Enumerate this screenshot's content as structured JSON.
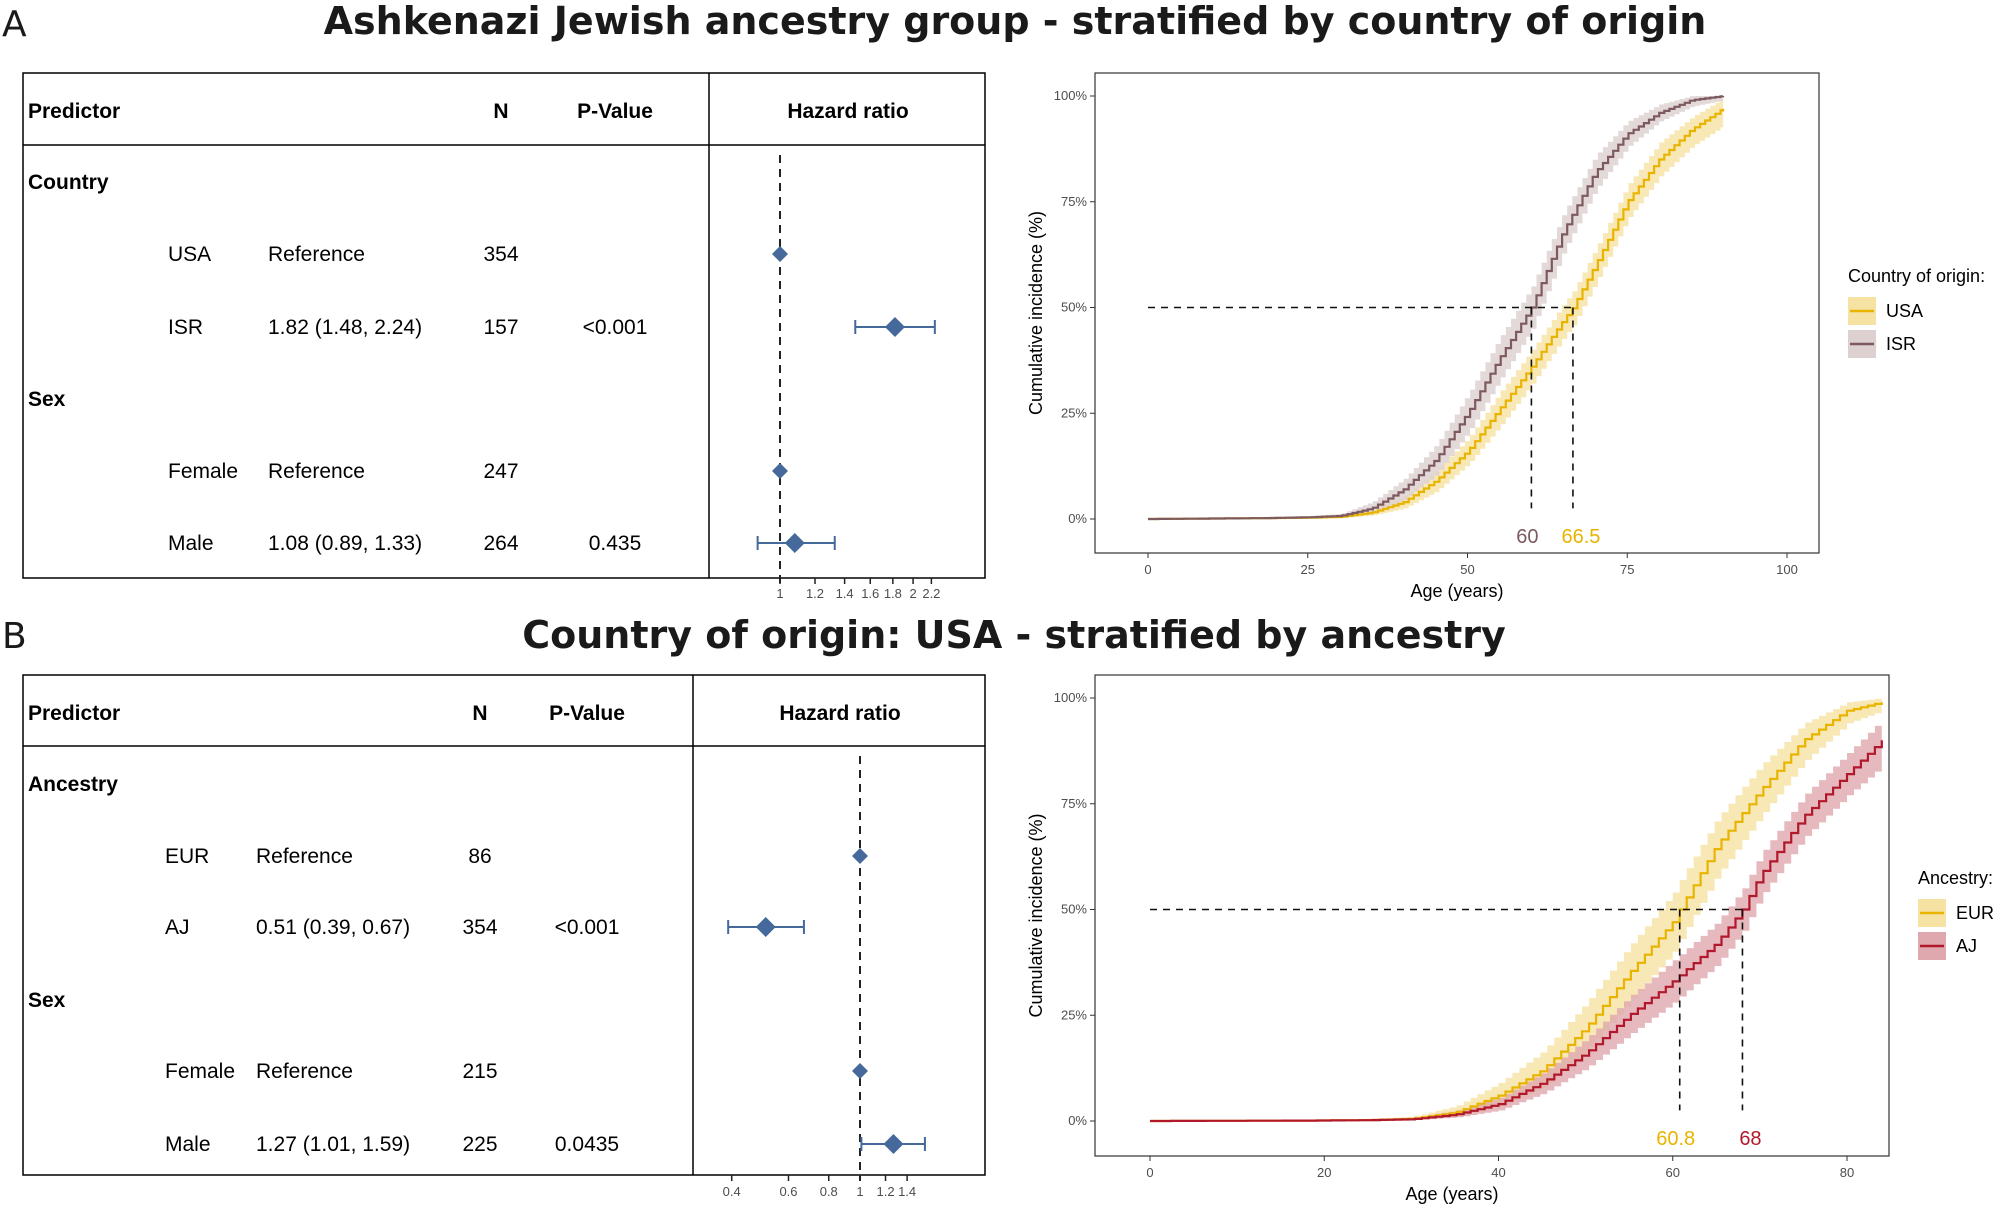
{
  "chart_data": [
    {
      "panel_label": "A",
      "title": "Ashkenazi Jewish ancestry group - stratified by country of  origin",
      "forest": {
        "type": "table",
        "headers": {
          "predictor": "Predictor",
          "n": "N",
          "p": "P-Value",
          "hr": "Hazard ratio"
        },
        "rows": [
          {
            "group": "Country"
          },
          {
            "label": "USA",
            "estimate": "Reference",
            "n": "354",
            "p": "",
            "hr": 1
          },
          {
            "label": "ISR",
            "estimate": "1.82 (1.48, 2.24)",
            "n": "157",
            "p": "<0.001",
            "hr": 1.82,
            "lo": 1.48,
            "hi": 2.24
          },
          {
            "group": "Sex"
          },
          {
            "label": "Female",
            "estimate": "Reference",
            "n": "247",
            "p": "",
            "hr": 1
          },
          {
            "label": "Male",
            "estimate": "1.08 (0.89, 1.33)",
            "n": "264",
            "p": "0.435",
            "hr": 1.08,
            "lo": 0.89,
            "hi": 1.33
          }
        ],
        "x_scale": "log",
        "x_ticks": [
          "1",
          "1.2",
          "1.4",
          "1.6",
          "1.8",
          "2",
          "2.2"
        ],
        "reference_line": 1,
        "marker_color": "#44699A"
      },
      "km": {
        "type": "line",
        "xlabel": "Age (years)",
        "ylabel": "Cumulative incidence (%)",
        "x_ticks": [
          "0",
          "25",
          "50",
          "75",
          "100"
        ],
        "y_ticks": [
          "0%",
          "25%",
          "50%",
          "75%",
          "100%"
        ],
        "xlim": [
          -4,
          104
        ],
        "ylim": [
          -5,
          105
        ],
        "grid": false,
        "legend_title": "Country of origin:",
        "legend_position": "right",
        "series": [
          {
            "name": "USA",
            "color": "#E8B400",
            "band_color": "#F6E2A2",
            "x": [
              0,
              18,
              25,
              30,
              35,
              40,
              45,
              50,
              55,
              60,
              65,
              66.5,
              70,
              75,
              80,
              85,
              90
            ],
            "y": [
              0,
              0.2,
              0.3,
              0.5,
              1.5,
              4,
              9,
              16,
              26,
              36,
              47,
              50,
              60,
              75,
              85,
              92,
              97
            ],
            "lower": [
              0,
              0,
              0,
              0.2,
              0.8,
              2.5,
              6.5,
              13,
              22,
              32,
              43,
              46,
              56,
              71,
              81,
              88,
              93
            ],
            "upper": [
              0,
              0.4,
              0.6,
              1,
              2.4,
              5.5,
              11.5,
              19,
              30,
              40,
              51,
              54,
              64,
              79,
              89,
              95,
              99.5
            ]
          },
          {
            "name": "ISR",
            "color": "#7D5A5F",
            "band_color": "#DCD0D0",
            "x": [
              0,
              18,
              25,
              30,
              35,
              40,
              45,
              50,
              55,
              60,
              65,
              70,
              75,
              80,
              85,
              90
            ],
            "y": [
              0,
              0.2,
              0.4,
              0.7,
              2.5,
              7,
              14,
              25,
              38,
              50,
              68,
              82,
              91,
              96,
              99,
              100
            ],
            "lower": [
              0,
              0,
              0.1,
              0.3,
              1.2,
              4.5,
              10.5,
              20.5,
              33,
              45,
              63.5,
              78,
              88,
              94,
              97.5,
              99
            ],
            "upper": [
              0,
              0.4,
              0.7,
              1.2,
              4,
              9.5,
              17.5,
              29.5,
              43,
              55,
              72.5,
              86,
              94,
              98,
              100,
              100
            ]
          }
        ],
        "medians": [
          {
            "series": "ISR",
            "value": 60,
            "label": "60"
          },
          {
            "series": "USA",
            "value": 66.5,
            "label": "66.5"
          }
        ]
      }
    },
    {
      "panel_label": "B",
      "title": "Country of  origin: USA - stratified by ancestry",
      "forest": {
        "type": "table",
        "headers": {
          "predictor": "Predictor",
          "n": "N",
          "p": "P-Value",
          "hr": "Hazard ratio"
        },
        "rows": [
          {
            "group": "Ancestry"
          },
          {
            "label": "EUR",
            "estimate": "Reference",
            "n": "86",
            "p": "",
            "hr": 1
          },
          {
            "label": "AJ",
            "estimate": "0.51 (0.39, 0.67)",
            "n": "354",
            "p": "<0.001",
            "hr": 0.51,
            "lo": 0.39,
            "hi": 0.67
          },
          {
            "group": "Sex"
          },
          {
            "label": "Female",
            "estimate": "Reference",
            "n": "215",
            "p": "",
            "hr": 1
          },
          {
            "label": "Male",
            "estimate": "1.27 (1.01, 1.59)",
            "n": "225",
            "p": "0.0435",
            "hr": 1.27,
            "lo": 1.01,
            "hi": 1.59
          }
        ],
        "x_scale": "log",
        "x_ticks": [
          "0.4",
          "0.6",
          "0.8",
          "1",
          "1.2",
          "1.4"
        ],
        "reference_line": 1,
        "marker_color": "#44699A"
      },
      "km": {
        "type": "line",
        "xlabel": "Age (years)",
        "ylabel": "Cumulative incidence (%)",
        "x_ticks": [
          "0",
          "20",
          "40",
          "60",
          "80"
        ],
        "y_ticks": [
          "0%",
          "25%",
          "50%",
          "75%",
          "100%"
        ],
        "xlim": [
          -4,
          84.5
        ],
        "ylim": [
          -5,
          105
        ],
        "grid": false,
        "legend_title": "Ancestry:",
        "legend_position": "right",
        "series": [
          {
            "name": "EUR",
            "color": "#E8B400",
            "band_color": "#F6E2A2",
            "x": [
              0,
              18,
              25,
              30,
              35,
              40,
              45,
              50,
              55,
              60,
              60.8,
              65,
              70,
              75,
              80,
              84
            ],
            "y": [
              0,
              0.1,
              0.2,
              0.5,
              2,
              6,
              12,
              22,
              35,
              47,
              50,
              65,
              78,
              90,
              97,
              99
            ],
            "lower": [
              0,
              0,
              0,
              0.2,
              1,
              3.5,
              8,
              16.5,
              28.5,
              40,
              43,
              58,
              72,
              85,
              94,
              97
            ],
            "upper": [
              0,
              0.3,
              0.5,
              1,
              3.5,
              9,
              16.5,
              28,
              41.5,
              54,
              57,
              71.5,
              84,
              94,
              99,
              100
            ]
          },
          {
            "name": "AJ",
            "color": "#B2182B",
            "band_color": "#DFA8AE",
            "x": [
              0,
              18,
              25,
              30,
              35,
              40,
              45,
              50,
              55,
              60,
              65,
              68,
              70,
              75,
              80,
              84
            ],
            "y": [
              0,
              0.1,
              0.2,
              0.4,
              1.5,
              4,
              9,
              16,
              25,
              33,
              42,
              50,
              58,
              72,
              82,
              90
            ],
            "lower": [
              0,
              0,
              0,
              0.2,
              0.8,
              2.5,
              6.5,
              12.5,
              20.5,
              28,
              37,
              45,
              53,
              67,
              77,
              84
            ],
            "upper": [
              0,
              0.3,
              0.5,
              0.8,
              2.4,
              5.5,
              11.5,
              19.5,
              29.5,
              38,
              47,
              55,
              63,
              77,
              87,
              95
            ]
          }
        ],
        "medians": [
          {
            "series": "EUR",
            "value": 60.8,
            "label": "60.8"
          },
          {
            "series": "AJ",
            "value": 68,
            "label": "68"
          }
        ]
      }
    }
  ]
}
